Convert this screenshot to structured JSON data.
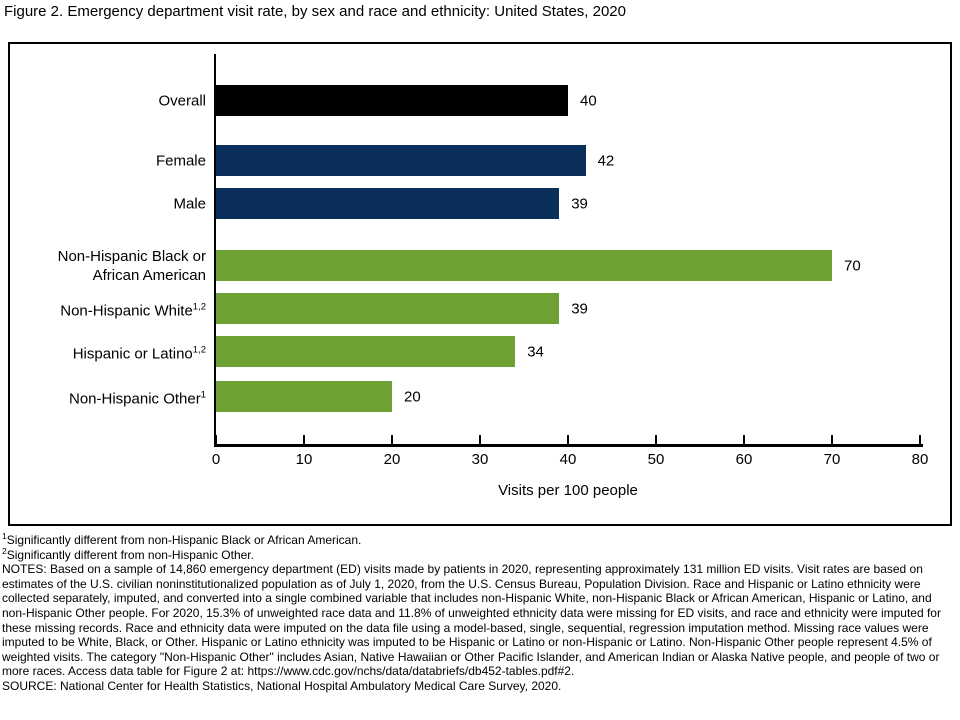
{
  "title": "Figure 2. Emergency department visit rate, by sex and race and ethnicity: United States, 2020",
  "colors": {
    "overall_bar": "#000000",
    "sex_bar": "#0B2F5B",
    "race_bar": "#6DA134",
    "axis": "#000000",
    "background": "#FFFFFF"
  },
  "chart_data": {
    "type": "bar",
    "orientation": "horizontal",
    "title": "Figure 2. Emergency department visit rate, by sex and race and ethnicity: United States, 2020",
    "xlabel": "Visits per 100 people",
    "ylabel": "",
    "xlim": [
      0,
      80
    ],
    "xticks": [
      0,
      10,
      20,
      30,
      40,
      50,
      60,
      70,
      80
    ],
    "grid": false,
    "legend": "none",
    "categories": [
      "Overall",
      "Female",
      "Male",
      "Non-Hispanic Black or African American",
      "Non-Hispanic White",
      "Hispanic or Latino",
      "Non-Hispanic Other"
    ],
    "values": [
      40,
      42,
      39,
      70,
      39,
      34,
      20
    ],
    "bars": [
      {
        "label": "Overall",
        "lines": [
          "Overall"
        ],
        "sup": "",
        "value": 40,
        "color": "#000000",
        "group": "overall"
      },
      {
        "label": "Female",
        "lines": [
          "Female"
        ],
        "sup": "",
        "value": 42,
        "color": "#0B2F5B",
        "group": "sex"
      },
      {
        "label": "Male",
        "lines": [
          "Male"
        ],
        "sup": "",
        "value": 39,
        "color": "#0B2F5B",
        "group": "sex"
      },
      {
        "label": "Non-Hispanic Black or African American",
        "lines": [
          "Non-Hispanic Black or",
          "African American"
        ],
        "sup": "",
        "value": 70,
        "color": "#6DA134",
        "group": "race"
      },
      {
        "label": "Non-Hispanic White",
        "lines": [
          "Non-Hispanic White"
        ],
        "sup": "1,2",
        "value": 39,
        "color": "#6DA134",
        "group": "race"
      },
      {
        "label": "Hispanic or Latino",
        "lines": [
          "Hispanic or Latino"
        ],
        "sup": "1,2",
        "value": 34,
        "color": "#6DA134",
        "group": "race"
      },
      {
        "label": "Non-Hispanic Other",
        "lines": [
          "Non-Hispanic Other"
        ],
        "sup": "1",
        "value": 20,
        "color": "#6DA134",
        "group": "race"
      }
    ]
  },
  "footnotes": [
    {
      "sup": "1",
      "text": "Significantly different from non-Hispanic Black or African American."
    },
    {
      "sup": "2",
      "text": "Significantly different from non-Hispanic Other."
    },
    {
      "sup": "",
      "text": "NOTES: Based on a sample of 14,860 emergency department (ED) visits made by patients in 2020, representing approximately 131 million ED visits. Visit rates are based on estimates of the U.S. civilian noninstitutionalized population as of July 1, 2020, from the U.S. Census Bureau, Population Division. Race and Hispanic or Latino ethnicity were collected separately, imputed, and converted into a single combined variable that includes non-Hispanic White, non-Hispanic Black or African American, Hispanic or Latino, and non-Hispanic Other people. For 2020, 15.3% of unweighted race data and 11.8% of unweighted ethnicity data were missing for ED visits, and race and ethnicity were imputed for these missing records. Race and ethnicity data were imputed on the data file using a model-based, single, sequential, regression imputation method. Missing race values were imputed to be White, Black, or Other. Hispanic or Latino ethnicity was imputed to be Hispanic or Latino or non-Hispanic or Latino. Non-Hispanic Other people represent 4.5% of weighted visits. The category \"Non-Hispanic Other\" includes Asian, Native Hawaiian or Other Pacific Islander, and American Indian or Alaska Native people, and people of two or more races. Access data table for Figure 2 at: https://www.cdc.gov/nchs/data/databriefs/db452-tables.pdf#2."
    },
    {
      "sup": "",
      "text": "SOURCE: National Center for Health Statistics, National Hospital Ambulatory Medical Care Survey, 2020."
    }
  ]
}
